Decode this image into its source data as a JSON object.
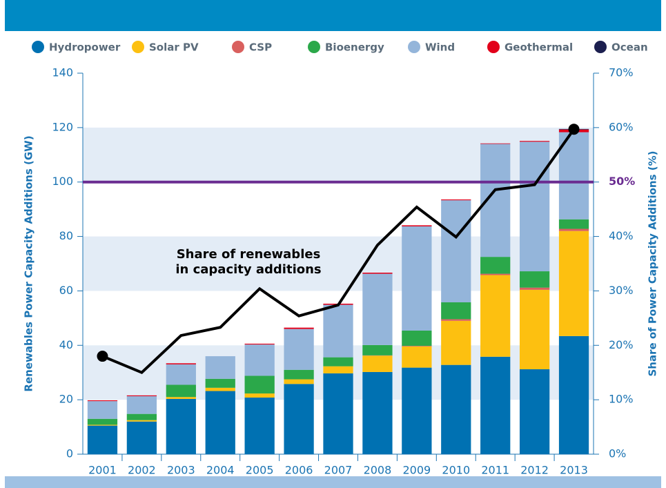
{
  "chart_data": {
    "type": "stacked_bar_line",
    "categories": [
      "2001",
      "2002",
      "2003",
      "2004",
      "2005",
      "2006",
      "2007",
      "2008",
      "2009",
      "2010",
      "2011",
      "2012",
      "2013"
    ],
    "series": [
      {
        "name": "Hydropower",
        "color": "#0071b2",
        "values": [
          10.5,
          12,
          20.3,
          23.2,
          20.8,
          25.8,
          29.7,
          30.2,
          31.8,
          32.8,
          35.8,
          31.2,
          43.4
        ]
      },
      {
        "name": "Solar PV",
        "color": "#fdc010",
        "values": [
          0.3,
          0.5,
          0.7,
          1.2,
          1.5,
          1.7,
          2.6,
          6,
          7.8,
          16.2,
          30,
          29.2,
          38.6
        ]
      },
      {
        "name": "CSP",
        "color": "#d9605e",
        "values": [
          0,
          0,
          0,
          0,
          0,
          0,
          0,
          0.1,
          0.2,
          0.6,
          0.5,
          0.8,
          0.8
        ]
      },
      {
        "name": "Bioenergy",
        "color": "#2ba84a",
        "values": [
          2.2,
          2.3,
          4.5,
          3.3,
          6.5,
          3.5,
          3.3,
          3.8,
          5.6,
          6.2,
          6.2,
          6,
          3.5
        ]
      },
      {
        "name": "Wind",
        "color": "#94b5da",
        "values": [
          6.5,
          6.5,
          7.5,
          8.3,
          11.5,
          15,
          19.3,
          26.2,
          38.3,
          37.5,
          41.5,
          47.6,
          32
        ]
      },
      {
        "name": "Geothermal",
        "color": "#e2001a",
        "values": [
          0.3,
          0.3,
          0.4,
          0,
          0.3,
          0.5,
          0.4,
          0.4,
          0.4,
          0.3,
          0.2,
          0.3,
          1
        ]
      },
      {
        "name": "Ocean",
        "color": "#1c1f4f",
        "values": [
          0,
          0,
          0,
          0,
          0,
          0,
          0,
          0,
          0,
          0,
          0,
          0,
          0.2
        ]
      }
    ],
    "line": {
      "color": "#000000",
      "axis": "y2",
      "values": [
        18.0,
        15.0,
        21.8,
        23.3,
        30.4,
        25.4,
        27.4,
        38.4,
        45.4,
        39.9,
        48.6,
        49.5,
        59.7
      ],
      "markers_at": [
        0,
        12
      ]
    },
    "annotation": [
      "Share of renewables",
      "in capacity additions"
    ],
    "reference_line": {
      "value": 50,
      "axis": "y2",
      "color": "#6a2c91"
    },
    "ylabel": "Renewables Power Capacity Additions (GW)",
    "y2label": "Share of Power Capacity Additions (%)",
    "ylim": [
      0,
      140
    ],
    "yticks": [
      0,
      20,
      40,
      60,
      80,
      100,
      120,
      140
    ],
    "y2lim": [
      0,
      70
    ],
    "y2ticks": [
      {
        "value": 0,
        "label": "0%"
      },
      {
        "value": 10,
        "label": "10%"
      },
      {
        "value": 20,
        "label": "20%"
      },
      {
        "value": 30,
        "label": "30%"
      },
      {
        "value": 40,
        "label": "40%"
      },
      {
        "value": 50,
        "label": "50%"
      },
      {
        "value": 60,
        "label": "60%"
      },
      {
        "value": 70,
        "label": "70%"
      }
    ],
    "grid": true
  }
}
